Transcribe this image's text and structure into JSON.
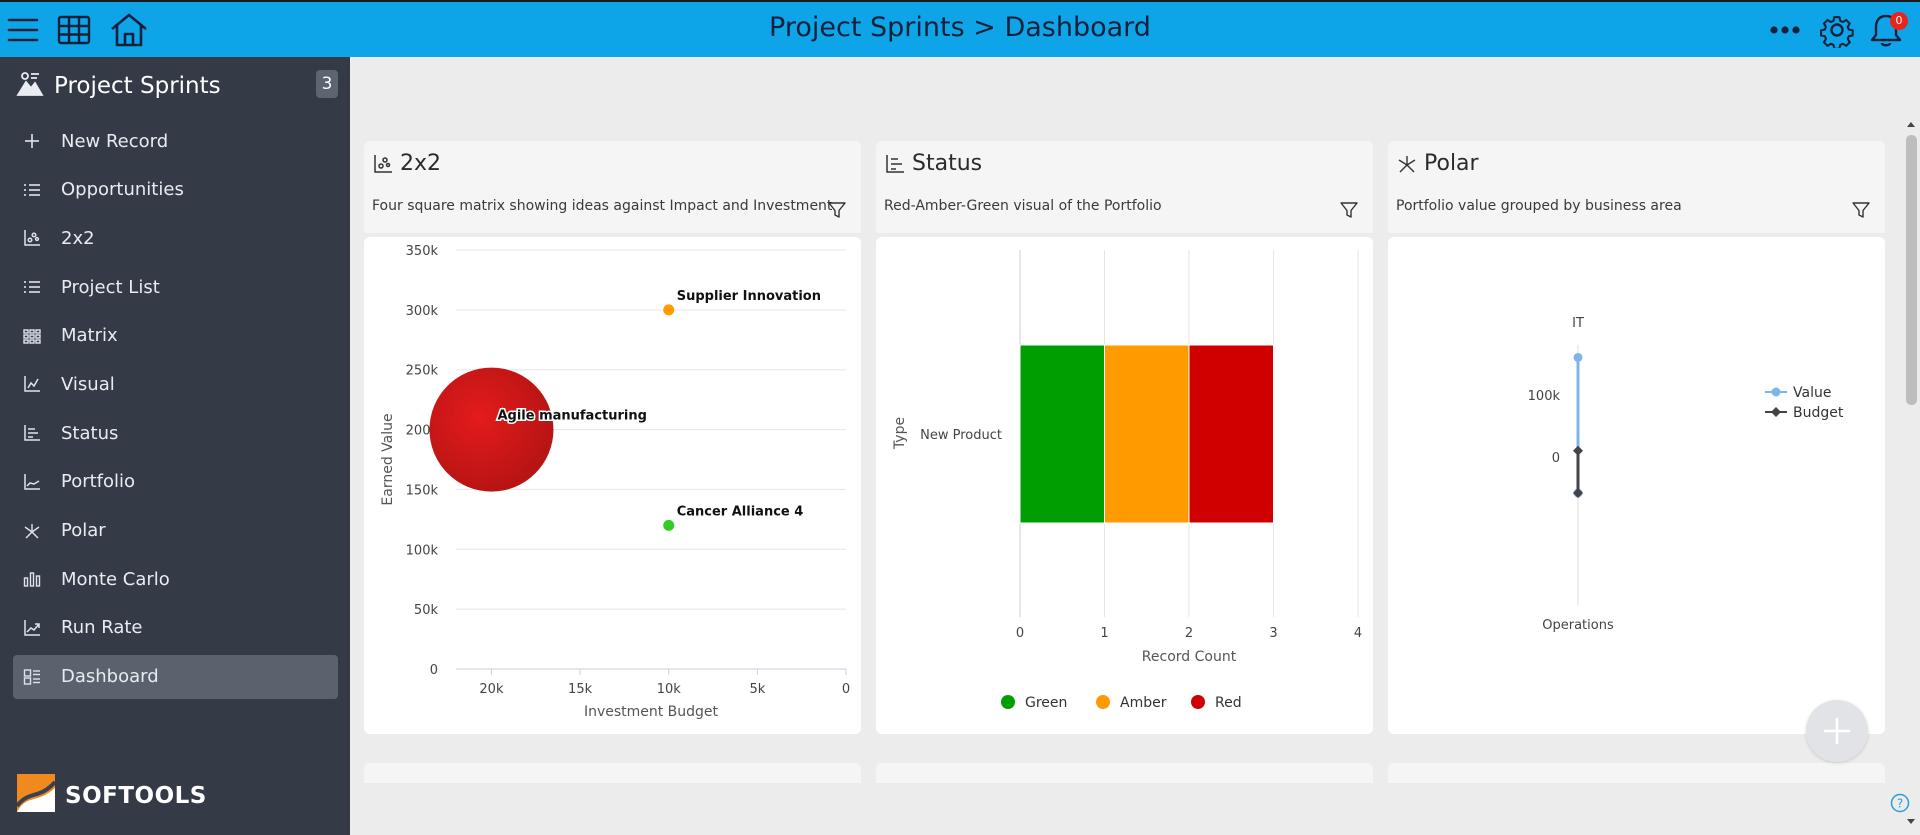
{
  "header": {
    "title": "Project Sprints > Dashboard",
    "notification_count": "0"
  },
  "app": {
    "name": "Project Sprints",
    "count": "3",
    "logo_text": "SOFTOOLS"
  },
  "sidebar": {
    "items": [
      {
        "label": "New Record",
        "icon": "plus-icon"
      },
      {
        "label": "Opportunities",
        "icon": "list-icon"
      },
      {
        "label": "2x2",
        "icon": "scatter-chart-icon"
      },
      {
        "label": "Project List",
        "icon": "list-icon"
      },
      {
        "label": "Matrix",
        "icon": "matrix-icon"
      },
      {
        "label": "Visual",
        "icon": "line-chart-icon"
      },
      {
        "label": "Status",
        "icon": "bar-chart-icon"
      },
      {
        "label": "Portfolio",
        "icon": "area-chart-icon"
      },
      {
        "label": "Polar",
        "icon": "polar-chart-icon"
      },
      {
        "label": "Monte Carlo",
        "icon": "column-chart-icon"
      },
      {
        "label": "Run Rate",
        "icon": "trend-chart-icon"
      },
      {
        "label": "Dashboard",
        "icon": "dashboard-icon",
        "active": true
      }
    ]
  },
  "cards": [
    {
      "title": "2x2",
      "description": "Four square matrix showing ideas against Impact and Investment"
    },
    {
      "title": "Status",
      "description": "Red-Amber-Green visual of the Portfolio"
    },
    {
      "title": "Polar",
      "description": "Portfolio value grouped by business area"
    }
  ],
  "colors": {
    "topbar": "#0ea5e8",
    "sidebar": "#343b46",
    "green": "#009e00",
    "amber": "#ff9a00",
    "red": "#d00000"
  },
  "chart_data": [
    {
      "type": "scatter",
      "title": "2x2",
      "xlabel": "Investment Budget",
      "ylabel": "Earned Value",
      "x_reversed": true,
      "xlim": [
        0,
        22000
      ],
      "ylim": [
        0,
        350000
      ],
      "x_ticks": [
        "20k",
        "15k",
        "10k",
        "5k",
        "0"
      ],
      "y_ticks": [
        "0",
        "50k",
        "100k",
        "150k",
        "200k",
        "250k",
        "300k",
        "350k"
      ],
      "points": [
        {
          "label": "Supplier Innovation",
          "x": 10000,
          "y": 300000,
          "color": "#ff9a00",
          "size": "small"
        },
        {
          "label": "Agile manufacturing",
          "x": 20000,
          "y": 200000,
          "color": "#d51010",
          "size": "large"
        },
        {
          "label": "Cancer Alliance 4",
          "x": 10000,
          "y": 120000,
          "color": "#33cc22",
          "size": "small"
        }
      ]
    },
    {
      "type": "bar",
      "title": "Status",
      "orientation": "horizontal",
      "stacked": true,
      "categories": [
        "New Product"
      ],
      "xlabel": "Record Count",
      "ylabel": "Type",
      "xlim": [
        0,
        4
      ],
      "x_ticks": [
        "0",
        "1",
        "2",
        "3",
        "4"
      ],
      "series": [
        {
          "name": "Green",
          "values": [
            1
          ],
          "color": "#009e00"
        },
        {
          "name": "Amber",
          "values": [
            1
          ],
          "color": "#ff9a00"
        },
        {
          "name": "Red",
          "values": [
            1
          ],
          "color": "#d00000"
        }
      ]
    },
    {
      "type": "line",
      "title": "Polar",
      "polar": true,
      "categories": [
        "IT",
        "Operations"
      ],
      "r_ticks": [
        "0",
        "100k"
      ],
      "series": [
        {
          "name": "Value",
          "values": [
            160000,
            0
          ],
          "color": "#7cb5ec"
        },
        {
          "name": "Budget",
          "values": [
            10000,
            0
          ],
          "color": "#434348"
        }
      ]
    }
  ]
}
